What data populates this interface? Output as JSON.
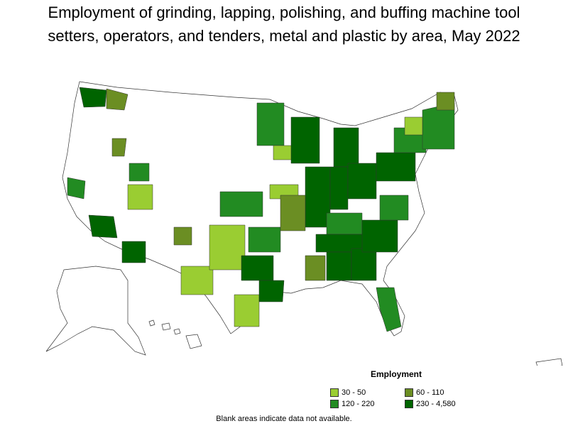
{
  "title_line1": "Employment of grinding, lapping, polishing, and buffing machine tool",
  "title_line2": "setters, operators, and tenders, metal and plastic by area, May 2022",
  "legend": {
    "title": "Employment",
    "items": [
      {
        "label": "30 - 50",
        "color": "#9acd32"
      },
      {
        "label": "60 - 110",
        "color": "#6b8e23"
      },
      {
        "label": "120 - 220",
        "color": "#228b22"
      },
      {
        "label": "230 - 4,580",
        "color": "#006400"
      }
    ]
  },
  "footnote": "Blank areas indicate data not available."
}
